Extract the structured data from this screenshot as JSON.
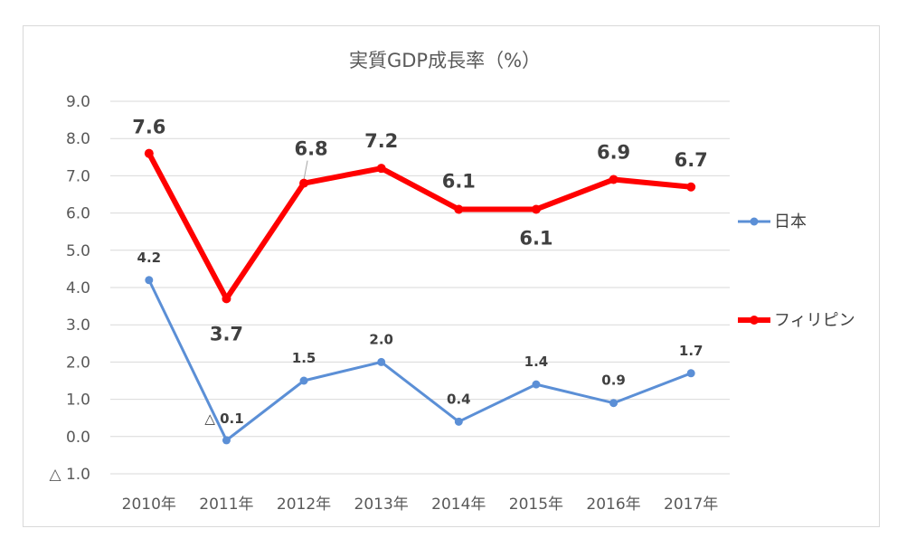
{
  "chart_data": {
    "type": "line",
    "title": "実質GDP成長率（%）",
    "categories": [
      "2010年",
      "2011年",
      "2012年",
      "2013年",
      "2014年",
      "2015年",
      "2016年",
      "2017年"
    ],
    "ylim": [
      -1,
      9
    ],
    "yticks": [
      9,
      8,
      7,
      6,
      5,
      4,
      3,
      2,
      1,
      0,
      -1
    ],
    "ytick_labels": [
      "9.0",
      "8.0",
      "7.0",
      "6.0",
      "5.0",
      "4.0",
      "3.0",
      "2.0",
      "1.0",
      "0.0",
      "△ 1.0"
    ],
    "grid": true,
    "legend_position": "right",
    "series": [
      {
        "name": "日本",
        "color": "#5b8fd6",
        "values": [
          4.2,
          -0.1,
          1.5,
          2.0,
          0.4,
          1.4,
          0.9,
          1.7
        ],
        "labels": [
          "4.2",
          "△ 0.1",
          "1.5",
          "2.0",
          "0.4",
          "1.4",
          "0.9",
          "1.7"
        ]
      },
      {
        "name": "フィリピン",
        "color": "#ff0000",
        "values": [
          7.6,
          3.7,
          6.8,
          7.2,
          6.1,
          6.1,
          6.9,
          6.7
        ],
        "labels": [
          "7.6",
          "3.7",
          "6.8",
          "7.2",
          "6.1",
          "6.1",
          "6.9",
          "6.7"
        ]
      }
    ]
  }
}
